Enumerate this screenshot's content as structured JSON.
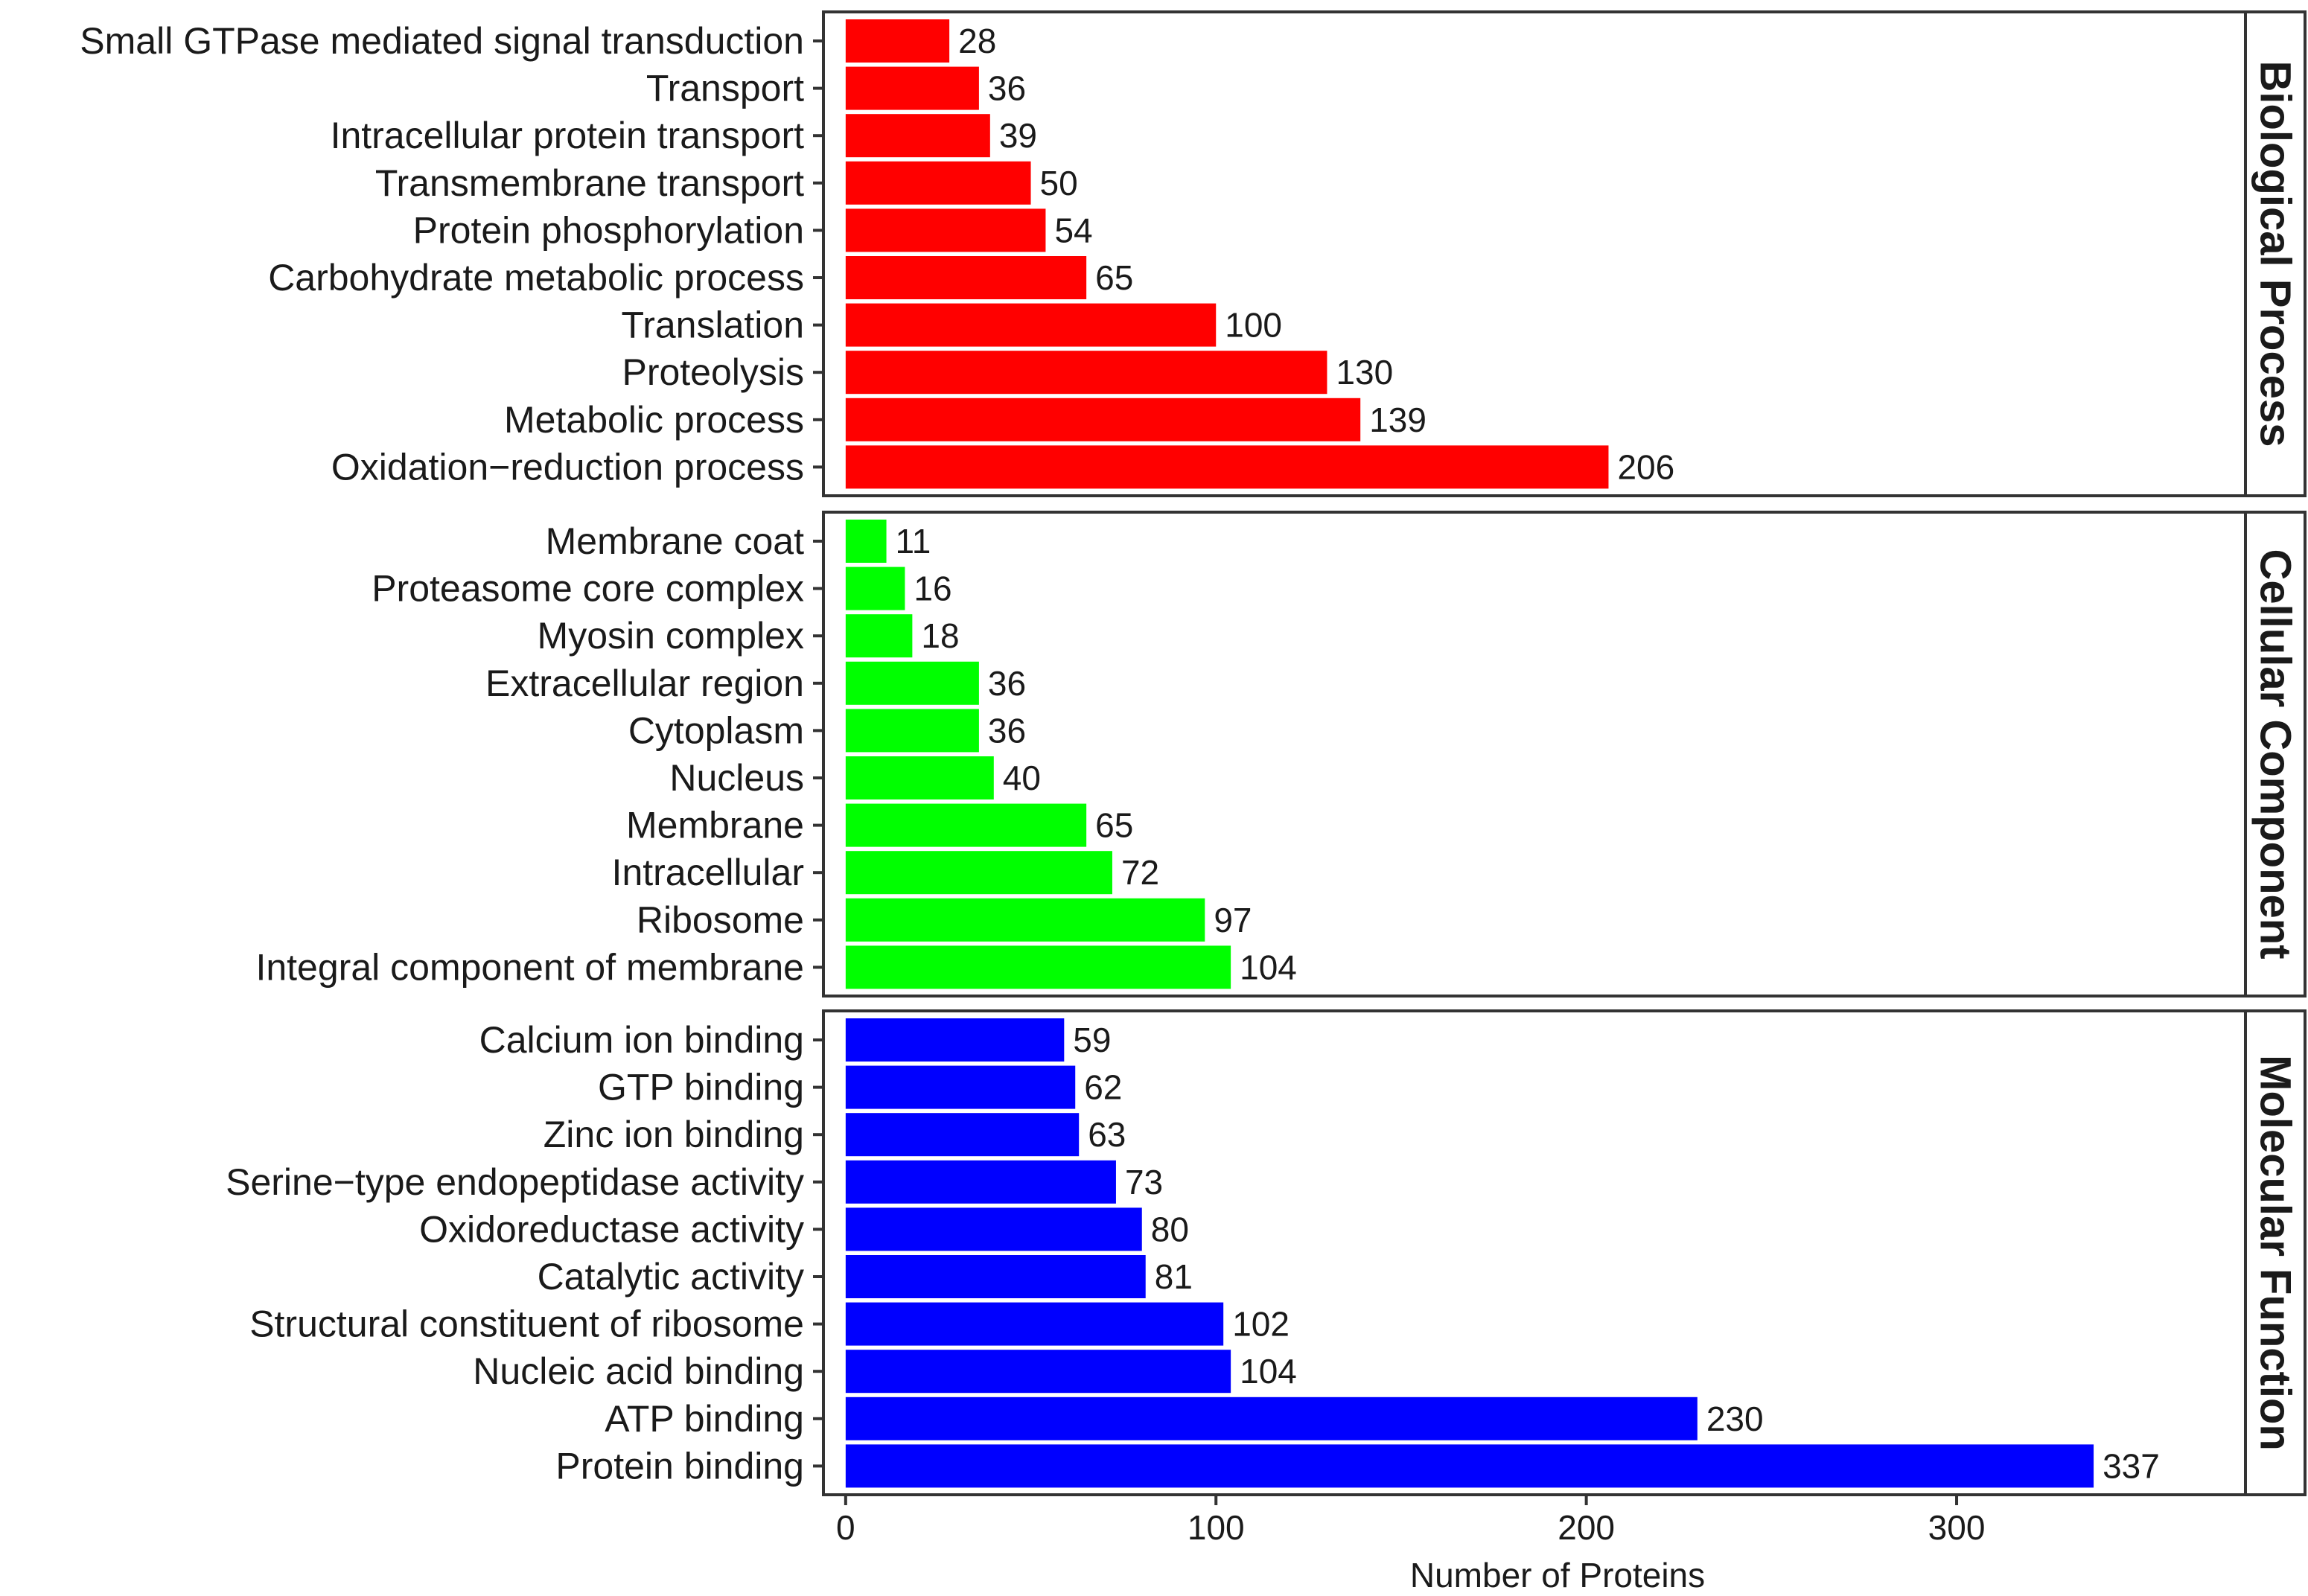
{
  "chart_data": {
    "type": "bar",
    "orientation": "horizontal",
    "xlabel": "Number of Proteins",
    "xlim": [
      -6,
      378
    ],
    "xticks": [
      0,
      100,
      200,
      300
    ],
    "grid": false,
    "legend": "none",
    "panels": [
      {
        "name": "Biological Process",
        "color": "#FF0000",
        "categories": [
          "Small GTPase mediated signal transduction",
          "Transport",
          "Intracellular protein transport",
          "Transmembrane transport",
          "Protein phosphorylation",
          "Carbohydrate metabolic process",
          "Translation",
          "Proteolysis",
          "Metabolic process",
          "Oxidation−reduction process"
        ],
        "values": [
          28,
          36,
          39,
          50,
          54,
          65,
          100,
          130,
          139,
          206
        ]
      },
      {
        "name": "Cellular Component",
        "color": "#00FF00",
        "categories": [
          "Membrane coat",
          "Proteasome core complex",
          "Myosin complex",
          "Extracellular region",
          "Cytoplasm",
          "Nucleus",
          "Membrane",
          "Intracellular",
          "Ribosome",
          "Integral component of membrane"
        ],
        "values": [
          11,
          16,
          18,
          36,
          36,
          40,
          65,
          72,
          97,
          104
        ]
      },
      {
        "name": "Molecular Function",
        "color": "#0000FF",
        "categories": [
          "Calcium ion binding",
          "GTP binding",
          "Zinc ion binding",
          "Serine−type endopeptidase activity",
          "Oxidoreductase activity",
          "Catalytic activity",
          "Structural constituent of ribosome",
          "Nucleic acid binding",
          "ATP binding",
          "Protein binding"
        ],
        "values": [
          59,
          62,
          63,
          73,
          80,
          81,
          102,
          104,
          230,
          337
        ]
      }
    ]
  }
}
